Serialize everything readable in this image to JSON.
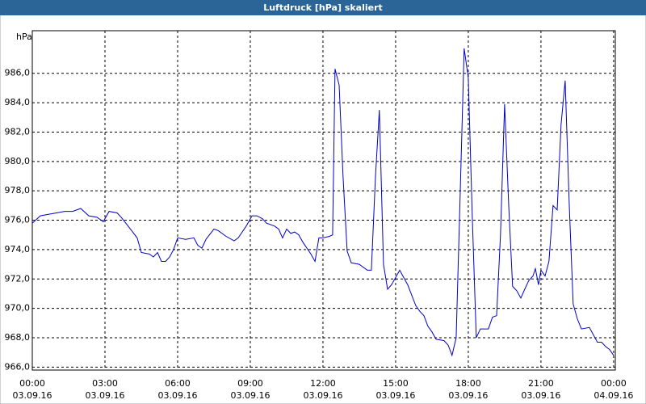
{
  "window_title": "Luftdruck [hPa] skaliert",
  "chart_data": {
    "type": "line",
    "y_unit": "hPa",
    "x": [
      0,
      0.33,
      0.67,
      1,
      1.33,
      1.67,
      2,
      2.33,
      2.67,
      2.93,
      3.17,
      3.5,
      3.67,
      4,
      4.33,
      4.5,
      4.83,
      5,
      5.17,
      5.33,
      5.5,
      5.67,
      5.83,
      6,
      6.33,
      6.67,
      6.83,
      7,
      7.17,
      7.5,
      7.67,
      8,
      8.33,
      8.5,
      8.83,
      9.07,
      9.27,
      9.5,
      9.67,
      10,
      10.17,
      10.33,
      10.5,
      10.67,
      10.83,
      11,
      11.17,
      11.5,
      11.67,
      11.83,
      12,
      12.27,
      12.4,
      12.5,
      12.67,
      12.83,
      13,
      13.17,
      13.5,
      13.83,
      14,
      14.17,
      14.33,
      14.5,
      14.67,
      14.83,
      15,
      15.17,
      15.5,
      15.83,
      16,
      16.17,
      16.33,
      16.5,
      16.67,
      17,
      17.17,
      17.33,
      17.5,
      17.67,
      17.83,
      18,
      18.17,
      18.33,
      18.5,
      18.83,
      19,
      19.17,
      19.33,
      19.5,
      19.67,
      19.83,
      20,
      20.17,
      20.33,
      20.5,
      20.67,
      20.77,
      20.9,
      21,
      21.17,
      21.33,
      21.5,
      21.67,
      21.83,
      22,
      22.17,
      22.33,
      22.5,
      22.67,
      23,
      23.33,
      23.5,
      23.67,
      23.83,
      24
    ],
    "series": [
      {
        "color": "#0000cc",
        "values": [
          975.8,
          976.3,
          976.4,
          976.5,
          976.6,
          976.6,
          976.8,
          976.3,
          976.2,
          975.9,
          976.6,
          976.5,
          976.2,
          975.5,
          974.8,
          973.8,
          973.7,
          973.5,
          973.8,
          973.2,
          973.2,
          973.5,
          974.0,
          974.8,
          974.7,
          974.8,
          974.3,
          974.1,
          974.7,
          975.4,
          975.3,
          974.9,
          974.6,
          974.8,
          975.6,
          976.3,
          976.3,
          976.1,
          975.8,
          975.6,
          975.4,
          974.8,
          975.4,
          975.1,
          975.2,
          975.0,
          974.5,
          973.7,
          973.2,
          974.8,
          974.8,
          974.9,
          975.0,
          986.3,
          985.2,
          979.0,
          973.9,
          973.1,
          973.0,
          972.6,
          972.6,
          979.0,
          983.5,
          973.0,
          971.3,
          971.6,
          972.1,
          972.6,
          971.6,
          970.2,
          969.8,
          969.5,
          968.8,
          968.4,
          967.9,
          967.8,
          967.5,
          966.8,
          968.0,
          978.0,
          987.7,
          985.7,
          976.0,
          968.0,
          968.6,
          968.6,
          969.4,
          969.5,
          975.0,
          983.9,
          977.0,
          971.5,
          971.2,
          970.7,
          971.3,
          971.9,
          972.2,
          972.7,
          971.6,
          972.6,
          972.2,
          973.2,
          977.0,
          976.7,
          982.5,
          985.5,
          977.0,
          970.3,
          969.3,
          968.6,
          968.7,
          967.7,
          967.7,
          967.4,
          967.2,
          966.8
        ]
      }
    ],
    "xlim": [
      0,
      24.07
    ],
    "xticks": [
      {
        "value": 0,
        "label": "00:00"
      },
      {
        "value": 3,
        "label": "03:00"
      },
      {
        "value": 6,
        "label": "06:00"
      },
      {
        "value": 9,
        "label": "09:00"
      },
      {
        "value": 12,
        "label": "12:00"
      },
      {
        "value": 15,
        "label": "15:00"
      },
      {
        "value": 18,
        "label": "18:00"
      },
      {
        "value": 21,
        "label": "21:00"
      },
      {
        "value": 24,
        "label": "00:00"
      }
    ],
    "xtick_dates": [
      "03.09.16",
      "03.09.16",
      "03.09.16",
      "03.09.16",
      "03.09.16",
      "03.09.16",
      "03.09.16",
      "03.09.16",
      "04.09.16"
    ],
    "ylim": [
      965.8,
      988.9
    ],
    "yticks": [
      {
        "value": 966,
        "label": "966,0"
      },
      {
        "value": 968,
        "label": "968,0"
      },
      {
        "value": 970,
        "label": "970,0"
      },
      {
        "value": 972,
        "label": "972,0"
      },
      {
        "value": 974,
        "label": "974,0"
      },
      {
        "value": 976,
        "label": "976,0"
      },
      {
        "value": 978,
        "label": "978,0"
      },
      {
        "value": 980,
        "label": "980,0"
      },
      {
        "value": 982,
        "label": "982,0"
      },
      {
        "value": 984,
        "label": "984,0"
      },
      {
        "value": 986,
        "label": "986,0"
      }
    ],
    "grid": true
  }
}
